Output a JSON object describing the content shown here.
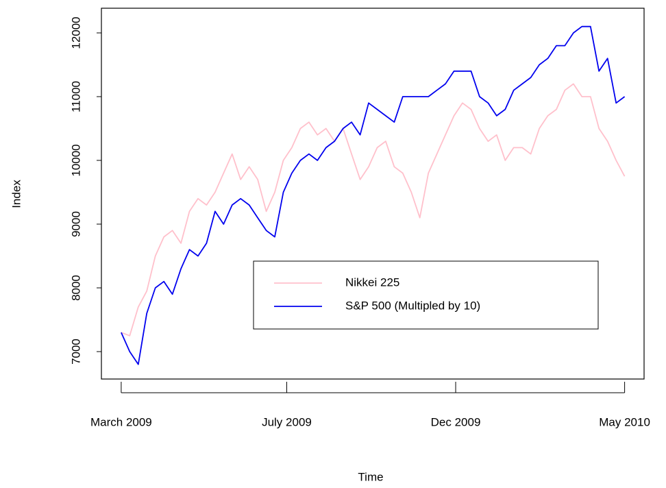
{
  "chart_data": {
    "type": "line",
    "x_label": "Time",
    "y_label": "Index",
    "x": [
      0,
      5,
      10,
      15,
      20,
      25,
      30,
      35,
      40,
      45,
      50,
      55,
      60,
      65,
      70,
      75,
      80,
      85,
      90,
      95,
      100,
      105,
      110,
      115,
      120,
      125,
      130,
      135,
      140,
      145,
      150,
      155,
      160,
      165,
      170,
      175,
      180,
      185,
      190,
      195,
      200,
      205,
      210,
      215,
      220,
      225,
      230,
      235,
      240,
      245,
      250,
      255,
      260,
      265,
      270,
      275,
      280,
      285,
      290,
      295
    ],
    "xlim": [
      -11.6,
      306.4
    ],
    "xticks": [
      {
        "value": 0,
        "label": "March 2009"
      },
      {
        "value": 97,
        "label": "July 2009"
      },
      {
        "value": 196,
        "label": "Dec 2009"
      },
      {
        "value": 295,
        "label": "May 2010"
      }
    ],
    "ylim": [
      6570,
      12387
    ],
    "yticks": [
      7000,
      8000,
      9000,
      10000,
      11000,
      12000
    ],
    "grid": false,
    "legend": "bottomright",
    "series": [
      {
        "name": "Nikkei 225",
        "color": "#ffc0cb",
        "values": [
          7300,
          7250,
          7700,
          7950,
          8500,
          8800,
          8900,
          8700,
          9200,
          9400,
          9300,
          9500,
          9800,
          10100,
          9700,
          9900,
          9700,
          9200,
          9500,
          10000,
          10200,
          10500,
          10600,
          10400,
          10500,
          10300,
          10500,
          10100,
          9700,
          9900,
          10200,
          10300,
          9900,
          9800,
          9500,
          9100,
          9800,
          10100,
          10400,
          10700,
          10900,
          10800,
          10500,
          10300,
          10400,
          10000,
          10200,
          10200,
          10100,
          10500,
          10700,
          10800,
          11100,
          11200,
          11000,
          11000,
          10500,
          10300,
          10000,
          9750
        ]
      },
      {
        "name": "S&P 500 (Multipled by 10)",
        "color": "#0000ee",
        "values": [
          7300,
          7000,
          6800,
          7600,
          8000,
          8100,
          7900,
          8300,
          8600,
          8500,
          8700,
          9200,
          9000,
          9300,
          9400,
          9300,
          9100,
          8900,
          8800,
          9500,
          9800,
          10000,
          10100,
          10000,
          10200,
          10300,
          10500,
          10600,
          10400,
          10900,
          10800,
          10700,
          10600,
          11000,
          11000,
          11000,
          11000,
          11100,
          11200,
          11400,
          11400,
          11400,
          11000,
          10900,
          10700,
          10800,
          11100,
          11200,
          11300,
          11500,
          11600,
          11800,
          11800,
          12000,
          12100,
          12100,
          11400,
          11600,
          10900,
          11000
        ]
      }
    ]
  }
}
